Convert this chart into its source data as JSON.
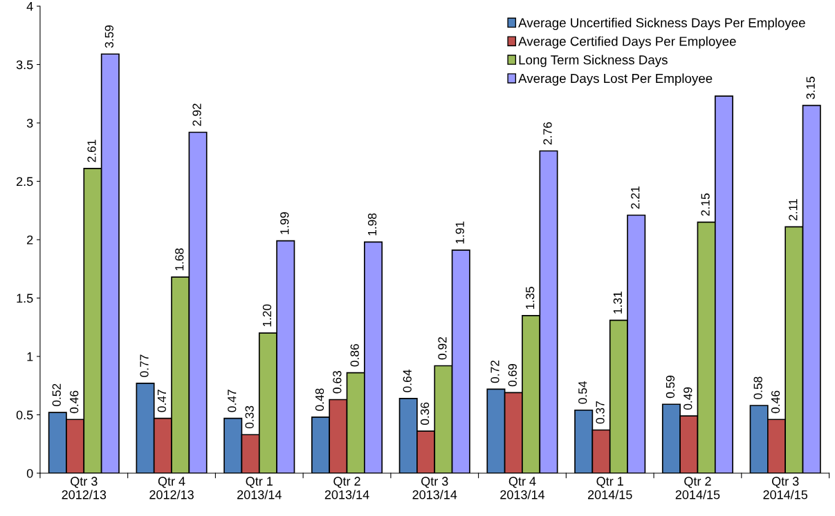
{
  "chart_data": {
    "type": "bar",
    "categories": [
      "Qtr 3\n2012/13",
      "Qtr 4\n2012/13",
      "Qtr 1\n2013/14",
      "Qtr 2\n2013/14",
      "Qtr 3\n2013/14",
      "Qtr 4\n2013/14",
      "Qtr 1\n2014/15",
      "Qtr 2\n2014/15",
      "Qtr 3\n2014/15"
    ],
    "series": [
      {
        "name": "Average Uncertified Sickness Days Per Employee",
        "color": "#4f81bd",
        "values": [
          0.52,
          0.77,
          0.47,
          0.48,
          0.64,
          0.72,
          0.54,
          0.59,
          0.58
        ],
        "value_labels": [
          "0.52",
          "0.77",
          "0.47",
          "0.48",
          "0.64",
          "0.72",
          "0.54",
          "0.59",
          "0.58"
        ]
      },
      {
        "name": "Average Certified Days Per Employee",
        "color": "#c0504d",
        "values": [
          0.46,
          0.47,
          0.33,
          0.63,
          0.36,
          0.69,
          0.37,
          0.49,
          0.46
        ],
        "value_labels": [
          "0.46",
          "0.47",
          "0.33",
          "0.63",
          "0.36",
          "0.69",
          "0.37",
          "0.49",
          "0.46"
        ]
      },
      {
        "name": "Long Term Sickness Days",
        "color": "#9bbb59",
        "values": [
          2.61,
          1.68,
          1.2,
          0.86,
          0.92,
          1.35,
          1.31,
          2.15,
          2.11
        ],
        "value_labels": [
          "2.61",
          "1.68",
          "1.20",
          "0.86",
          "0.92",
          "1.35",
          "1.31",
          "2.15",
          "2.11"
        ]
      },
      {
        "name": "Average Days Lost Per Employee",
        "color": "#9999ff",
        "values": [
          3.59,
          2.92,
          1.99,
          1.98,
          1.91,
          2.76,
          2.21,
          3.23,
          3.15
        ],
        "value_labels": [
          "3.59",
          "2.92",
          "1.99",
          "1.98",
          "1.91",
          "2.76",
          "2.21",
          null,
          "3.15"
        ]
      }
    ],
    "ylim": [
      0,
      4
    ],
    "yticks": [
      0,
      0.5,
      1,
      1.5,
      2,
      2.5,
      3,
      3.5,
      4
    ],
    "grid": false,
    "legend": "top right"
  }
}
